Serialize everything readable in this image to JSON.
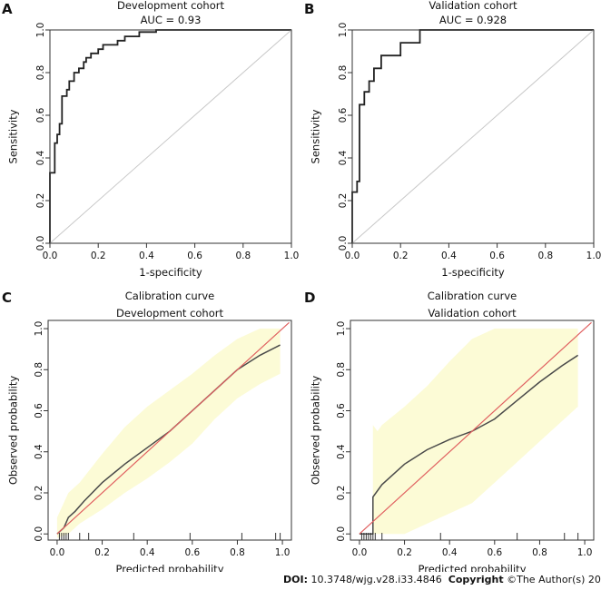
{
  "colors": {
    "roc_curve": "#222222",
    "diagonal": "#c8c8c8",
    "calib_curve": "#4a4a4a",
    "ideal_line": "#e06060",
    "ci_band": "#fcfbd6",
    "axis": "#333333"
  },
  "footer": {
    "doi_label": "DOI:",
    "doi_value": "10.3748/wjg.v28.i33.4846",
    "copyright_label": "Copyright",
    "copyright_value": "©The Author(s) 2022."
  },
  "chart_data": [
    {
      "panel": "A",
      "type": "line",
      "title": "Development cohort",
      "subtitle": "AUC = 0.93",
      "xlabel": "1-specificity",
      "ylabel": "Sensitivity",
      "xlim": [
        0,
        1
      ],
      "ylim": [
        0,
        1
      ],
      "xticks": [
        "0.0",
        "0.2",
        "0.4",
        "0.6",
        "0.8",
        "1.0"
      ],
      "yticks": [
        "0.0",
        "0.2",
        "0.4",
        "0.6",
        "0.8",
        "1.0"
      ],
      "series": [
        {
          "name": "ROC",
          "points": [
            [
              0,
              0
            ],
            [
              0,
              0.33
            ],
            [
              0.02,
              0.33
            ],
            [
              0.02,
              0.47
            ],
            [
              0.03,
              0.47
            ],
            [
              0.03,
              0.51
            ],
            [
              0.04,
              0.51
            ],
            [
              0.04,
              0.56
            ],
            [
              0.05,
              0.56
            ],
            [
              0.05,
              0.69
            ],
            [
              0.07,
              0.69
            ],
            [
              0.07,
              0.72
            ],
            [
              0.08,
              0.72
            ],
            [
              0.08,
              0.76
            ],
            [
              0.1,
              0.76
            ],
            [
              0.1,
              0.8
            ],
            [
              0.12,
              0.8
            ],
            [
              0.12,
              0.82
            ],
            [
              0.14,
              0.82
            ],
            [
              0.14,
              0.85
            ],
            [
              0.15,
              0.85
            ],
            [
              0.15,
              0.87
            ],
            [
              0.17,
              0.87
            ],
            [
              0.17,
              0.89
            ],
            [
              0.2,
              0.89
            ],
            [
              0.2,
              0.91
            ],
            [
              0.22,
              0.91
            ],
            [
              0.22,
              0.93
            ],
            [
              0.28,
              0.93
            ],
            [
              0.28,
              0.95
            ],
            [
              0.31,
              0.95
            ],
            [
              0.31,
              0.97
            ],
            [
              0.37,
              0.97
            ],
            [
              0.37,
              0.99
            ],
            [
              0.44,
              0.99
            ],
            [
              0.44,
              1.0
            ],
            [
              1.0,
              1.0
            ]
          ]
        },
        {
          "name": "Reference",
          "points": [
            [
              0,
              0
            ],
            [
              1,
              1
            ]
          ]
        }
      ]
    },
    {
      "panel": "B",
      "type": "line",
      "title": "Validation cohort",
      "subtitle": "AUC = 0.928",
      "xlabel": "1-specificity",
      "ylabel": "Sensitivity",
      "xlim": [
        0,
        1
      ],
      "ylim": [
        0,
        1
      ],
      "xticks": [
        "0.0",
        "0.2",
        "0.4",
        "0.6",
        "0.8",
        "1.0"
      ],
      "yticks": [
        "0.0",
        "0.2",
        "0.4",
        "0.6",
        "0.8",
        "1.0"
      ],
      "series": [
        {
          "name": "ROC",
          "points": [
            [
              0,
              0
            ],
            [
              0,
              0.24
            ],
            [
              0.02,
              0.24
            ],
            [
              0.02,
              0.29
            ],
            [
              0.03,
              0.29
            ],
            [
              0.03,
              0.65
            ],
            [
              0.05,
              0.65
            ],
            [
              0.05,
              0.71
            ],
            [
              0.07,
              0.71
            ],
            [
              0.07,
              0.76
            ],
            [
              0.09,
              0.76
            ],
            [
              0.09,
              0.82
            ],
            [
              0.12,
              0.82
            ],
            [
              0.12,
              0.88
            ],
            [
              0.2,
              0.88
            ],
            [
              0.2,
              0.94
            ],
            [
              0.28,
              0.94
            ],
            [
              0.28,
              1.0
            ],
            [
              1.0,
              1.0
            ]
          ]
        },
        {
          "name": "Reference",
          "points": [
            [
              0,
              0
            ],
            [
              1,
              1
            ]
          ]
        }
      ]
    },
    {
      "panel": "C",
      "type": "line",
      "title": "Calibration curve",
      "subtitle": "Development cohort",
      "xlabel": "Predicted probability",
      "ylabel": "Observed probability",
      "xlim": [
        -0.04,
        1.04
      ],
      "ylim": [
        -0.03,
        1.04
      ],
      "xticks": [
        "0.0",
        "0.2",
        "0.4",
        "0.6",
        "0.8",
        "1.0"
      ],
      "yticks": [
        "0.0",
        "0.2",
        "0.4",
        "0.6",
        "0.8",
        "1.0"
      ],
      "series": [
        {
          "name": "Calibration",
          "points": [
            [
              0,
              0
            ],
            [
              0.03,
              0.03
            ],
            [
              0.05,
              0.08
            ],
            [
              0.08,
              0.11
            ],
            [
              0.12,
              0.16
            ],
            [
              0.2,
              0.25
            ],
            [
              0.3,
              0.34
            ],
            [
              0.4,
              0.42
            ],
            [
              0.5,
              0.5
            ],
            [
              0.6,
              0.6
            ],
            [
              0.7,
              0.7
            ],
            [
              0.8,
              0.8
            ],
            [
              0.9,
              0.87
            ],
            [
              0.99,
              0.92
            ]
          ]
        },
        {
          "name": "Ideal",
          "points": [
            [
              0,
              0
            ],
            [
              1.03,
              1.03
            ]
          ]
        }
      ],
      "ci_upper": [
        [
          0,
          0.08
        ],
        [
          0.05,
          0.2
        ],
        [
          0.1,
          0.25
        ],
        [
          0.2,
          0.39
        ],
        [
          0.3,
          0.52
        ],
        [
          0.4,
          0.62
        ],
        [
          0.5,
          0.7
        ],
        [
          0.6,
          0.78
        ],
        [
          0.7,
          0.87
        ],
        [
          0.8,
          0.95
        ],
        [
          0.9,
          1.0
        ],
        [
          0.99,
          1.0
        ]
      ],
      "ci_lower": [
        [
          0,
          -0.02
        ],
        [
          0.05,
          0.0
        ],
        [
          0.1,
          0.05
        ],
        [
          0.2,
          0.12
        ],
        [
          0.3,
          0.2
        ],
        [
          0.4,
          0.27
        ],
        [
          0.5,
          0.35
        ],
        [
          0.6,
          0.44
        ],
        [
          0.7,
          0.56
        ],
        [
          0.8,
          0.66
        ],
        [
          0.9,
          0.73
        ],
        [
          0.99,
          0.78
        ]
      ],
      "rug": [
        0.01,
        0.02,
        0.03,
        0.04,
        0.05,
        0.1,
        0.14,
        0.34,
        0.59,
        0.82,
        0.97,
        0.99
      ]
    },
    {
      "panel": "D",
      "type": "line",
      "title": "Calibration curve",
      "subtitle": "Validation cohort",
      "xlabel": "Predicted probability",
      "ylabel": "Observed probability",
      "xlim": [
        -0.04,
        1.04
      ],
      "ylim": [
        -0.03,
        1.04
      ],
      "xticks": [
        "0.0",
        "0.2",
        "0.4",
        "0.6",
        "0.8",
        "1.0"
      ],
      "yticks": [
        "0.0",
        "0.2",
        "0.4",
        "0.6",
        "0.8",
        "1.0"
      ],
      "series": [
        {
          "name": "Calibration",
          "points": [
            [
              0,
              0
            ],
            [
              0.05,
              0.0
            ],
            [
              0.06,
              0.0
            ],
            [
              0.06,
              0.18
            ],
            [
              0.1,
              0.24
            ],
            [
              0.2,
              0.34
            ],
            [
              0.3,
              0.41
            ],
            [
              0.4,
              0.46
            ],
            [
              0.5,
              0.5
            ],
            [
              0.6,
              0.56
            ],
            [
              0.7,
              0.65
            ],
            [
              0.8,
              0.74
            ],
            [
              0.9,
              0.82
            ],
            [
              0.97,
              0.87
            ]
          ]
        },
        {
          "name": "Ideal",
          "points": [
            [
              0,
              0
            ],
            [
              1.03,
              1.03
            ]
          ]
        }
      ],
      "ci_upper": [
        [
          0.06,
          0.53
        ],
        [
          0.08,
          0.5
        ],
        [
          0.1,
          0.53
        ],
        [
          0.2,
          0.62
        ],
        [
          0.3,
          0.72
        ],
        [
          0.4,
          0.84
        ],
        [
          0.5,
          0.95
        ],
        [
          0.6,
          1.0
        ],
        [
          0.97,
          1.0
        ]
      ],
      "ci_lower": [
        [
          0.06,
          0.0
        ],
        [
          0.2,
          0.0
        ],
        [
          0.3,
          0.05
        ],
        [
          0.4,
          0.1
        ],
        [
          0.5,
          0.15
        ],
        [
          0.6,
          0.25
        ],
        [
          0.7,
          0.35
        ],
        [
          0.8,
          0.45
        ],
        [
          0.9,
          0.55
        ],
        [
          0.97,
          0.62
        ]
      ],
      "rug": [
        0.01,
        0.02,
        0.03,
        0.04,
        0.05,
        0.06,
        0.07,
        0.1,
        0.36,
        0.7,
        0.91,
        0.97
      ]
    }
  ]
}
